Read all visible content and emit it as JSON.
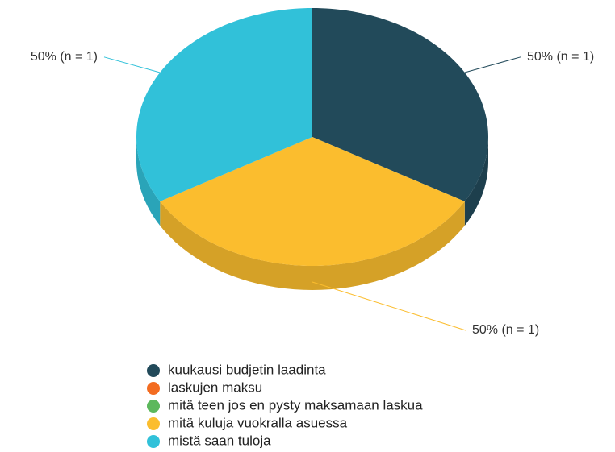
{
  "chart_data": {
    "type": "pie",
    "series": [
      {
        "name": "kuukausi budjetin laadinta",
        "color": "#224a5a",
        "values": [
          50
        ],
        "value_labels": [
          "50% (n = 1)"
        ]
      },
      {
        "name": "laskujen maksu",
        "color": "#f36c21",
        "values": [
          0
        ],
        "value_labels": [
          null
        ]
      },
      {
        "name": "mitä teen jos en pysty maksamaan laskua",
        "color": "#5cb85c",
        "values": [
          0
        ],
        "value_labels": [
          null
        ]
      },
      {
        "name": "mitä kuluja vuokralla asuessa",
        "color": "#fbbd2e",
        "values": [
          50
        ],
        "value_labels": [
          "50% (n = 1)"
        ]
      },
      {
        "name": "mistä saan tuloja",
        "color": "#31c1d9",
        "values": [
          50
        ],
        "value_labels": [
          "50% (n = 1)"
        ]
      }
    ]
  }
}
